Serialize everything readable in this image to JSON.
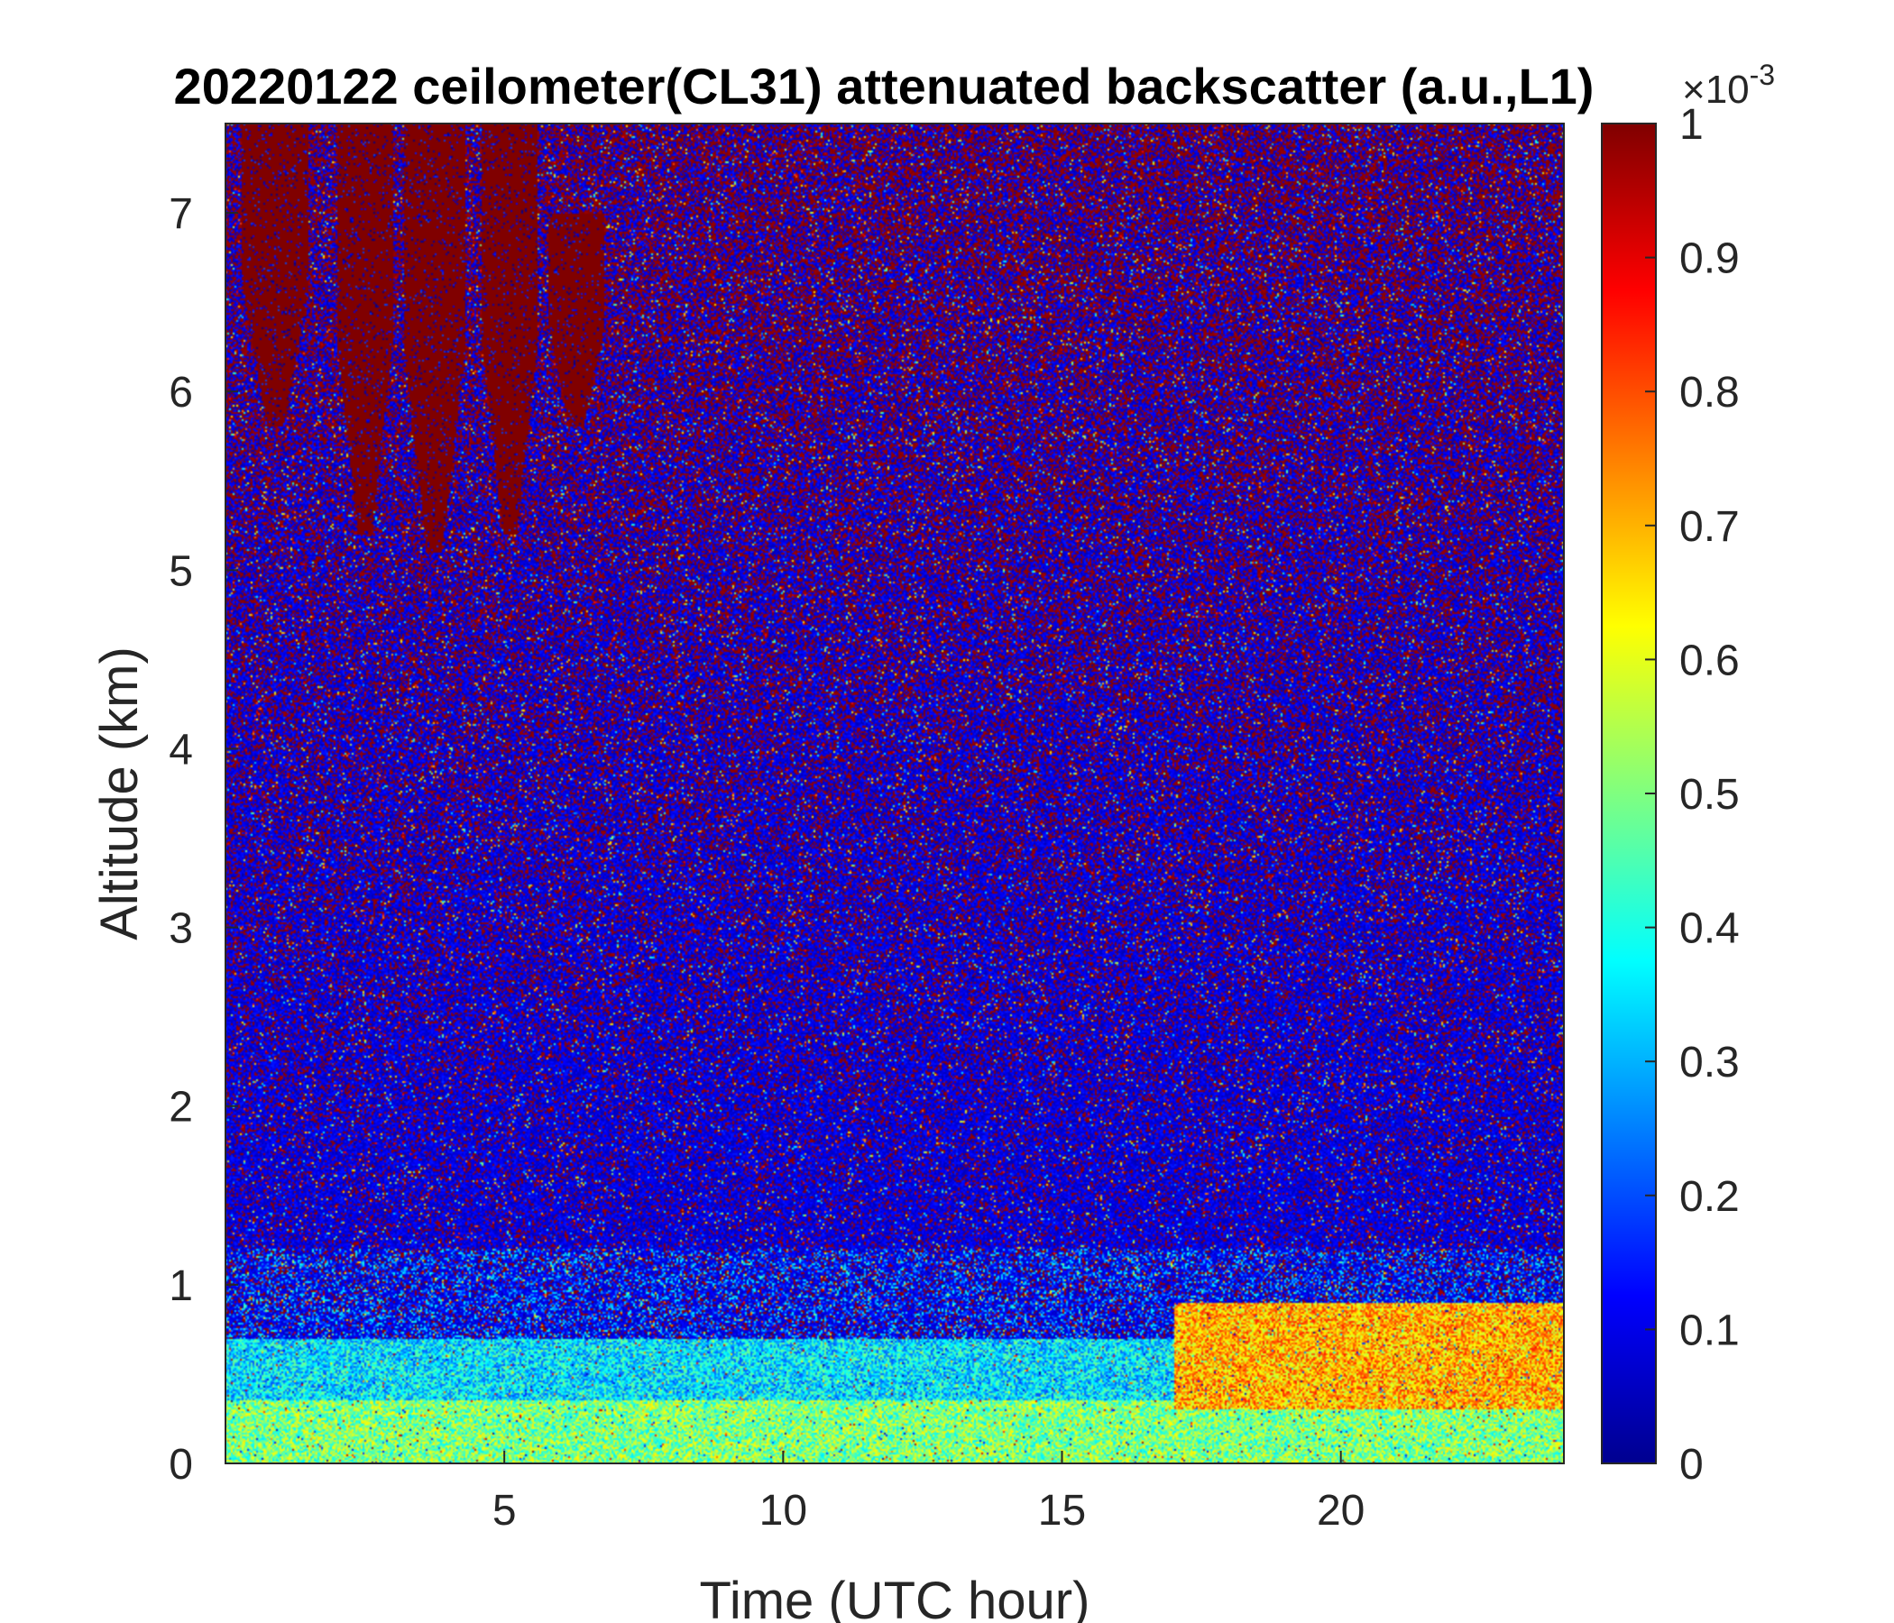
{
  "chart_data": {
    "type": "heatmap",
    "title": "20220122 ceilometer(CL31) attenuated backscatter (a.u.,L1)",
    "xlabel": "Time (UTC hour)",
    "ylabel": "Altitude (km)",
    "xlim": [
      0,
      24
    ],
    "ylim": [
      0,
      7.5
    ],
    "x_ticks": [
      5,
      10,
      15,
      20
    ],
    "y_ticks": [
      0,
      1,
      2,
      3,
      4,
      5,
      6,
      7
    ],
    "colorbar": {
      "colormap": "jet",
      "range": [
        0,
        1
      ],
      "ticks": [
        0,
        0.1,
        0.2,
        0.3,
        0.4,
        0.5,
        0.6,
        0.7,
        0.8,
        0.9,
        1
      ],
      "multiplier_base": "×10",
      "multiplier_exponent": "-3"
    },
    "layers": [
      {
        "altitude_km": [
          0.0,
          0.35
        ],
        "time_hours": [
          0,
          24
        ],
        "value": 0.5
      },
      {
        "altitude_km": [
          0.35,
          0.7
        ],
        "time_hours": [
          0,
          24
        ],
        "value": 0.35
      },
      {
        "altitude_km": [
          0.3,
          0.9
        ],
        "time_hours": [
          17,
          24
        ],
        "value": 0.7
      }
    ],
    "clouds": [
      {
        "time_hours": [
          0.3,
          1.5
        ],
        "altitude_km": [
          5.8,
          7.5
        ],
        "value": 1.0
      },
      {
        "time_hours": [
          2.0,
          3.0
        ],
        "altitude_km": [
          5.2,
          7.5
        ],
        "value": 1.0
      },
      {
        "time_hours": [
          3.2,
          4.3
        ],
        "altitude_km": [
          5.1,
          7.5
        ],
        "value": 1.0
      },
      {
        "time_hours": [
          4.6,
          5.6
        ],
        "altitude_km": [
          5.2,
          7.5
        ],
        "value": 1.0
      },
      {
        "time_hours": [
          5.8,
          6.8
        ],
        "altitude_km": [
          5.8,
          7.0
        ],
        "value": 1.0
      }
    ]
  }
}
